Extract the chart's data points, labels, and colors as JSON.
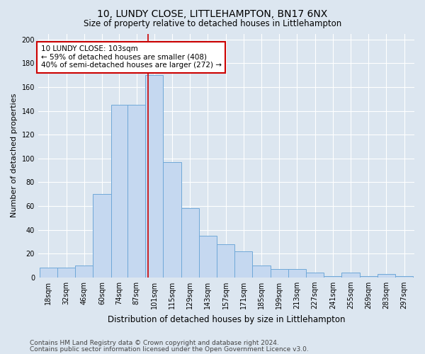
{
  "title": "10, LUNDY CLOSE, LITTLEHAMPTON, BN17 6NX",
  "subtitle": "Size of property relative to detached houses in Littlehampton",
  "xlabel": "Distribution of detached houses by size in Littlehampton",
  "ylabel": "Number of detached properties",
  "bar_edges": [
    18,
    32,
    46,
    60,
    74,
    87,
    101,
    115,
    129,
    143,
    157,
    171,
    185,
    199,
    213,
    227,
    241,
    255,
    269,
    283,
    297
  ],
  "bar_heights": [
    8,
    8,
    10,
    70,
    145,
    145,
    170,
    97,
    58,
    35,
    28,
    22,
    10,
    7,
    7,
    4,
    1,
    4,
    1,
    3,
    1
  ],
  "bar_color": "#c5d8f0",
  "bar_edge_color": "#6fa8d8",
  "property_size": 103,
  "property_line_color": "#cc0000",
  "annotation_line1": "10 LUNDY CLOSE: 103sqm",
  "annotation_line2": "← 59% of detached houses are smaller (408)",
  "annotation_line3": "40% of semi-detached houses are larger (272) →",
  "annotation_box_color": "#ffffff",
  "annotation_box_edge_color": "#cc0000",
  "background_color": "#dce6f0",
  "plot_bg_color": "#dce6f0",
  "ylim": [
    0,
    205
  ],
  "yticks": [
    0,
    20,
    40,
    60,
    80,
    100,
    120,
    140,
    160,
    180,
    200
  ],
  "footer_line1": "Contains HM Land Registry data © Crown copyright and database right 2024.",
  "footer_line2": "Contains public sector information licensed under the Open Government Licence v3.0.",
  "title_fontsize": 10,
  "subtitle_fontsize": 8.5,
  "xlabel_fontsize": 8.5,
  "ylabel_fontsize": 8,
  "tick_fontsize": 7,
  "footer_fontsize": 6.5,
  "annotation_fontsize": 7.5
}
